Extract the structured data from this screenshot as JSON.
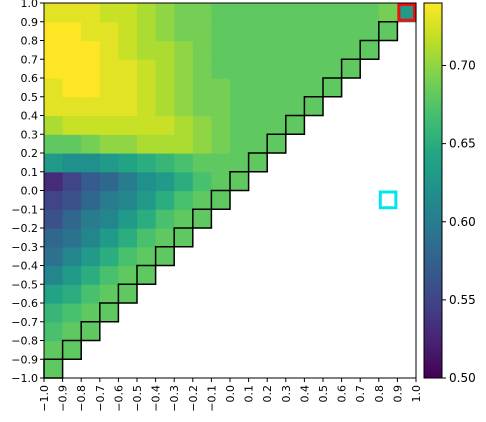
{
  "chart_data": {
    "type": "heatmap",
    "title": "",
    "xlabel": "",
    "ylabel": "",
    "x_ticks": [
      "−1.0",
      "−0.9",
      "−0.8",
      "−0.7",
      "−0.6",
      "−0.5",
      "−0.4",
      "−0.3",
      "−0.2",
      "−0.1",
      "0.0",
      "0.1",
      "0.2",
      "0.3",
      "0.4",
      "0.5",
      "0.6",
      "0.7",
      "0.8",
      "0.9",
      "1.0"
    ],
    "y_ticks": [
      "−1.0",
      "−0.9",
      "−0.8",
      "−0.7",
      "−0.6",
      "−0.5",
      "−0.4",
      "−0.3",
      "−0.2",
      "−0.1",
      "0.0",
      "0.1",
      "0.2",
      "0.3",
      "0.4",
      "0.5",
      "0.6",
      "0.7",
      "0.8",
      "0.9",
      "1.0"
    ],
    "x_cells": [
      -0.9,
      -0.8,
      -0.7,
      -0.6,
      -0.5,
      -0.4,
      -0.3,
      -0.2,
      -0.1,
      0.0,
      0.1,
      0.2,
      0.3,
      0.4,
      0.5,
      0.6,
      0.7,
      0.8,
      0.9,
      1.0
    ],
    "y_cells": [
      -0.9,
      -0.8,
      -0.7,
      -0.6,
      -0.5,
      -0.4,
      -0.3,
      -0.2,
      -0.1,
      0.0,
      0.1,
      0.2,
      0.3,
      0.4,
      0.5,
      0.6,
      0.7,
      0.8,
      0.9,
      1.0
    ],
    "values": [
      [
        0.68,
        null,
        null,
        null,
        null,
        null,
        null,
        null,
        null,
        null,
        null,
        null,
        null,
        null,
        null,
        null,
        null,
        null,
        null,
        null
      ],
      [
        0.68,
        0.68,
        null,
        null,
        null,
        null,
        null,
        null,
        null,
        null,
        null,
        null,
        null,
        null,
        null,
        null,
        null,
        null,
        null,
        null
      ],
      [
        0.67,
        0.68,
        0.68,
        null,
        null,
        null,
        null,
        null,
        null,
        null,
        null,
        null,
        null,
        null,
        null,
        null,
        null,
        null,
        null,
        null
      ],
      [
        0.66,
        0.67,
        0.68,
        0.68,
        null,
        null,
        null,
        null,
        null,
        null,
        null,
        null,
        null,
        null,
        null,
        null,
        null,
        null,
        null,
        null
      ],
      [
        0.64,
        0.65,
        0.67,
        0.68,
        0.68,
        null,
        null,
        null,
        null,
        null,
        null,
        null,
        null,
        null,
        null,
        null,
        null,
        null,
        null,
        null
      ],
      [
        0.61,
        0.63,
        0.65,
        0.67,
        0.68,
        0.68,
        null,
        null,
        null,
        null,
        null,
        null,
        null,
        null,
        null,
        null,
        null,
        null,
        null,
        null
      ],
      [
        0.59,
        0.61,
        0.63,
        0.65,
        0.67,
        0.68,
        0.68,
        null,
        null,
        null,
        null,
        null,
        null,
        null,
        null,
        null,
        null,
        null,
        null,
        null
      ],
      [
        0.58,
        0.59,
        0.61,
        0.63,
        0.65,
        0.67,
        0.68,
        0.68,
        null,
        null,
        null,
        null,
        null,
        null,
        null,
        null,
        null,
        null,
        null,
        null
      ],
      [
        0.56,
        0.58,
        0.6,
        0.61,
        0.63,
        0.65,
        0.67,
        0.68,
        0.68,
        null,
        null,
        null,
        null,
        null,
        null,
        null,
        null,
        null,
        null,
        null
      ],
      [
        0.55,
        0.56,
        0.58,
        0.6,
        0.61,
        0.63,
        0.65,
        0.67,
        0.68,
        0.68,
        null,
        null,
        null,
        null,
        null,
        null,
        null,
        null,
        null,
        null
      ],
      [
        0.53,
        0.55,
        0.57,
        0.58,
        0.6,
        0.62,
        0.63,
        0.65,
        0.67,
        0.68,
        0.68,
        null,
        null,
        null,
        null,
        null,
        null,
        null,
        null,
        null
      ],
      [
        0.63,
        0.62,
        0.62,
        0.63,
        0.64,
        0.65,
        0.66,
        0.67,
        0.68,
        0.68,
        0.68,
        0.68,
        null,
        null,
        null,
        null,
        null,
        null,
        null,
        null
      ],
      [
        0.68,
        0.68,
        0.69,
        0.7,
        0.7,
        0.71,
        0.71,
        0.71,
        0.7,
        0.69,
        0.68,
        0.68,
        0.68,
        null,
        null,
        null,
        null,
        null,
        null,
        null
      ],
      [
        0.71,
        0.72,
        0.72,
        0.72,
        0.72,
        0.72,
        0.72,
        0.71,
        0.7,
        0.69,
        0.68,
        0.68,
        0.68,
        0.68,
        null,
        null,
        null,
        null,
        null,
        null
      ],
      [
        0.73,
        0.73,
        0.73,
        0.73,
        0.73,
        0.72,
        0.71,
        0.7,
        0.69,
        0.69,
        0.68,
        0.68,
        0.68,
        0.68,
        0.68,
        null,
        null,
        null,
        null,
        null
      ],
      [
        0.73,
        0.74,
        0.74,
        0.73,
        0.73,
        0.72,
        0.71,
        0.7,
        0.69,
        0.69,
        0.68,
        0.68,
        0.68,
        0.68,
        0.68,
        0.68,
        null,
        null,
        null,
        null
      ],
      [
        0.74,
        0.74,
        0.74,
        0.73,
        0.73,
        0.72,
        0.71,
        0.7,
        0.69,
        0.68,
        0.68,
        0.68,
        0.68,
        0.68,
        0.68,
        0.68,
        0.68,
        null,
        null,
        null
      ],
      [
        0.74,
        0.74,
        0.74,
        0.73,
        0.72,
        0.71,
        0.71,
        0.7,
        0.69,
        0.68,
        0.68,
        0.68,
        0.68,
        0.68,
        0.68,
        0.68,
        0.68,
        0.68,
        null,
        null
      ],
      [
        0.74,
        0.74,
        0.73,
        0.73,
        0.72,
        0.71,
        0.7,
        0.69,
        0.69,
        0.68,
        0.68,
        0.68,
        0.68,
        0.68,
        0.68,
        0.68,
        0.68,
        0.68,
        0.68,
        null
      ],
      [
        0.73,
        0.73,
        0.73,
        0.72,
        0.72,
        0.71,
        0.7,
        0.69,
        0.69,
        0.68,
        0.68,
        0.68,
        0.68,
        0.68,
        0.68,
        0.68,
        0.68,
        0.68,
        0.69,
        0.63
      ]
    ],
    "colorbar": {
      "min": 0.5,
      "max": 0.74,
      "ticks": [
        "0.50",
        "0.55",
        "0.60",
        "0.65",
        "0.70"
      ],
      "tick_values": [
        0.5,
        0.55,
        0.6,
        0.65,
        0.7
      ],
      "colormap": "viridis"
    },
    "highlights": [
      {
        "x": 0.9,
        "y": 0.0,
        "color": "#00e5ee"
      },
      {
        "x": 1.0,
        "y": 1.0,
        "color": "#ee1111"
      }
    ],
    "diagonal_outline_color": "#000000",
    "grid": false,
    "legend": "none"
  }
}
